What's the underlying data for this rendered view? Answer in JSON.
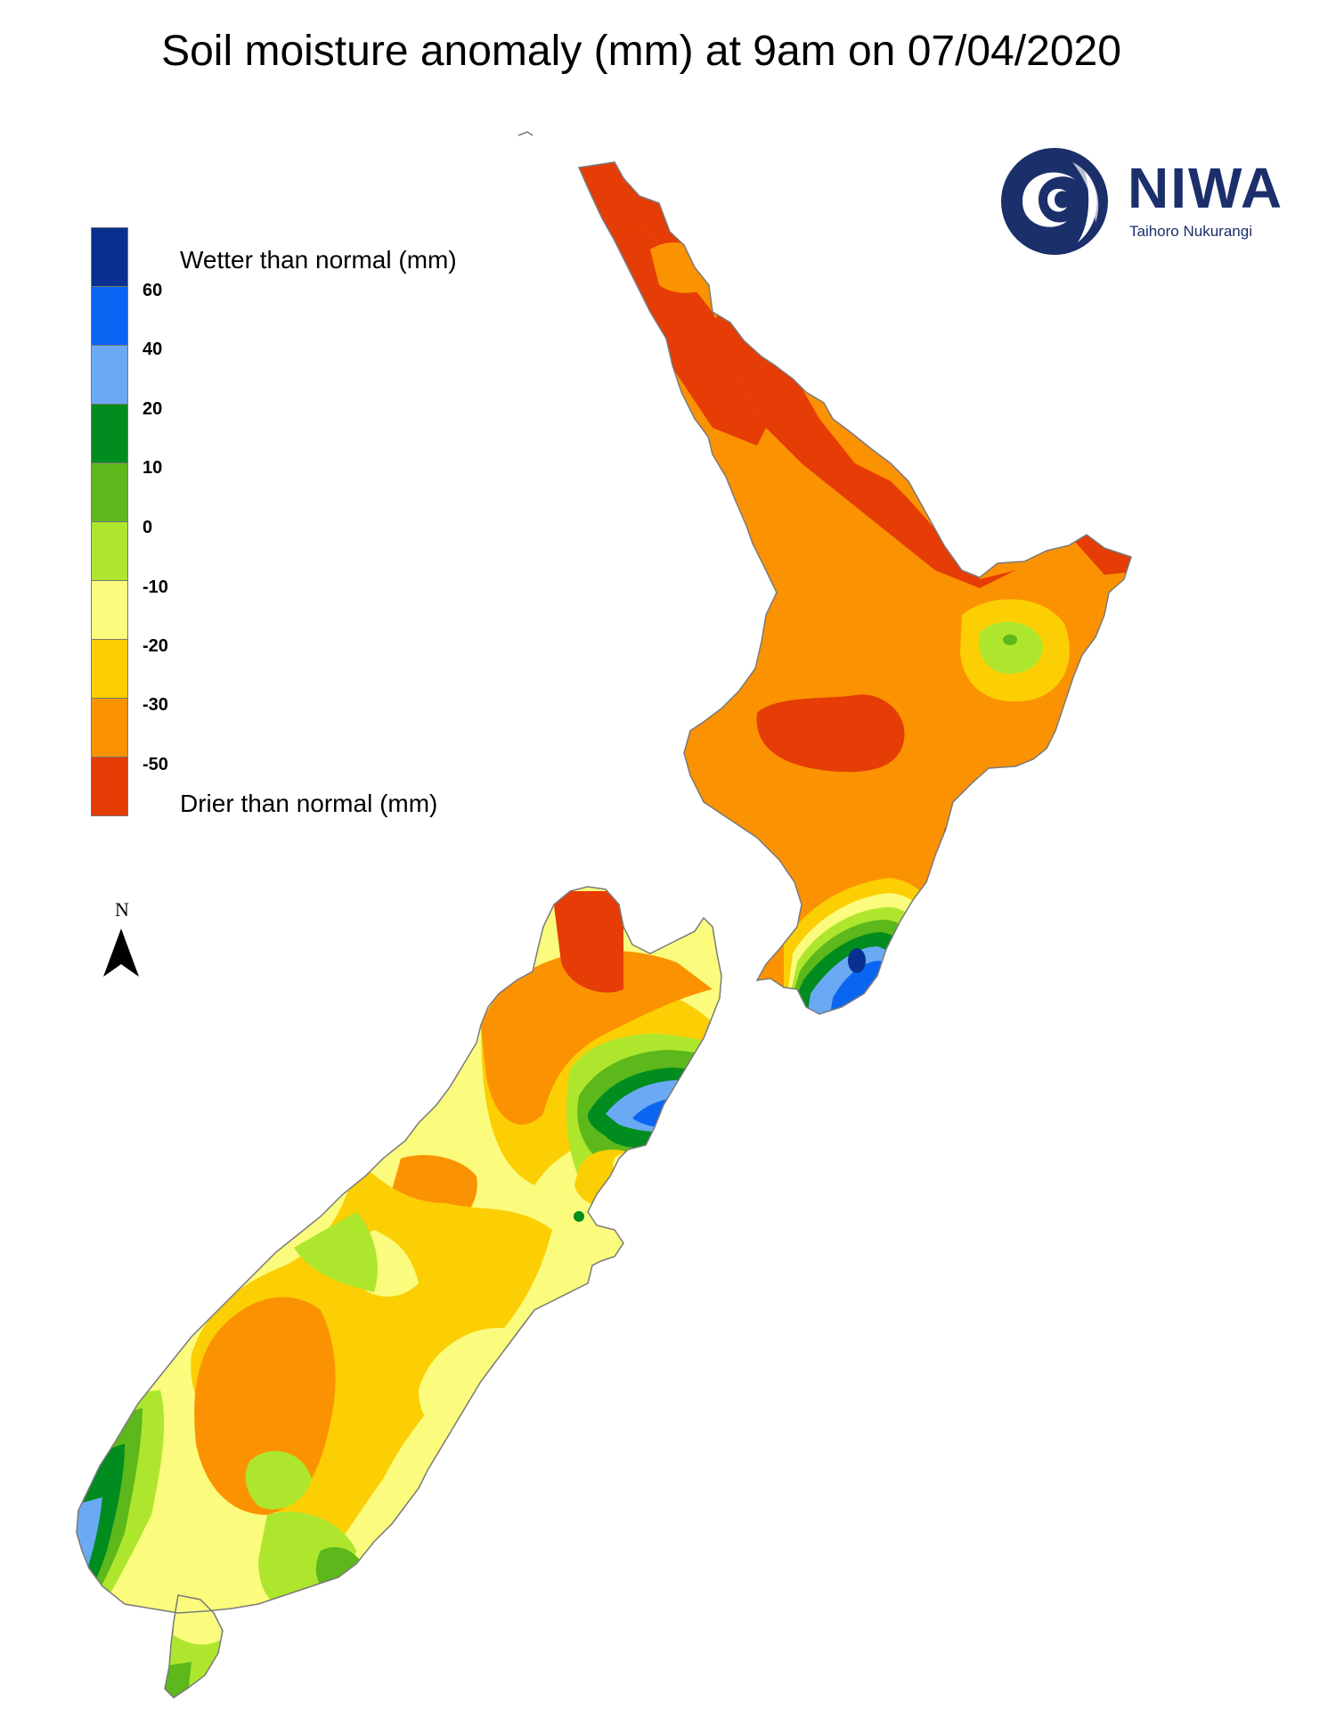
{
  "title": "Soil moisture anomaly (mm) at 9am on 07/04/2020",
  "legend": {
    "wetter_label": "Wetter than normal (mm)",
    "drier_label": "Drier than normal (mm)",
    "ticks": [
      "60",
      "40",
      "20",
      "10",
      "0",
      "-10",
      "-20",
      "-30",
      "-50"
    ],
    "colors": [
      "#08308f",
      "#0a66f2",
      "#6aaaf5",
      "#008c1e",
      "#5cb81b",
      "#aee62e",
      "#fbfb7d",
      "#fbcf03",
      "#fb9202",
      "#e63c06"
    ]
  },
  "north": {
    "letter": "N"
  },
  "logo": {
    "name": "NIWA",
    "subtitle": "Taihoro Nukurangi",
    "color": "#1b2f6b"
  },
  "map": {
    "region": "New Zealand",
    "regions": {
      "northland_auckland": "-50 or drier",
      "central_north_island": "-30 to -50",
      "central_plateau": "-50 or drier",
      "gisborne_inland": "0 to -10",
      "wairarapa_wellington": "20 to 60",
      "nelson_tasman": "-30 to -50",
      "kaikoura_coast": "20 to 60",
      "canterbury": "-10 to -30",
      "west_coast_fiordland": "0 to 20",
      "central_otago": "-30 to -50"
    }
  }
}
